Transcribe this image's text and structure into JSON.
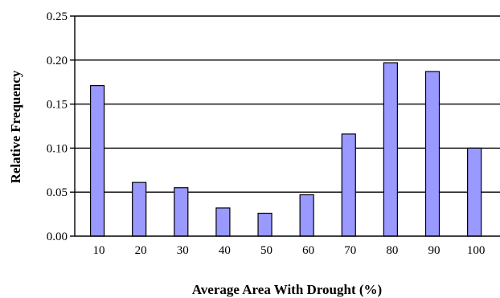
{
  "chart_data": {
    "type": "bar",
    "title": "",
    "xlabel": "Average Area With Drought (%)",
    "ylabel": "Relative Frequency",
    "categories": [
      "10",
      "20",
      "30",
      "40",
      "50",
      "60",
      "70",
      "80",
      "90",
      "100"
    ],
    "values": [
      0.171,
      0.061,
      0.055,
      0.032,
      0.026,
      0.047,
      0.116,
      0.197,
      0.187,
      0.1
    ],
    "ylim": [
      0,
      0.25
    ],
    "yticks": [
      "0.00",
      "0.05",
      "0.10",
      "0.15",
      "0.20",
      "0.25"
    ],
    "grid": true,
    "bar_color": "#9999ff"
  }
}
